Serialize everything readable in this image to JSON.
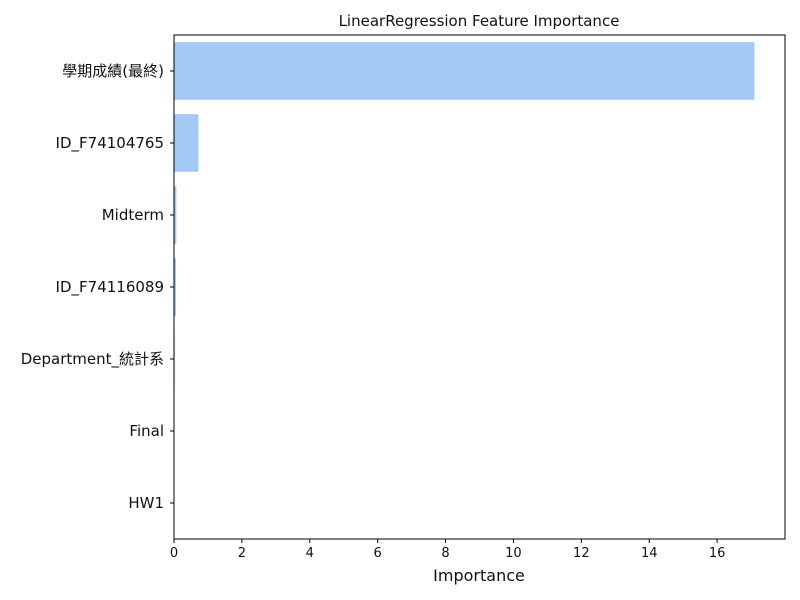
{
  "chart_data": {
    "type": "bar",
    "orientation": "horizontal",
    "title": "LinearRegression Feature Importance",
    "xlabel": "Importance",
    "ylabel": "",
    "categories": [
      "學期成績(最終)",
      "ID_F74104765",
      "Midterm",
      "ID_F74116089",
      "Department_統計系",
      "Final",
      "HW1"
    ],
    "values": [
      17.1,
      0.72,
      0.07,
      0.06,
      0.02,
      0.0,
      0.0
    ],
    "xlim": [
      0,
      18
    ],
    "xticks": [
      0,
      2,
      4,
      6,
      8,
      10,
      12,
      14,
      16
    ],
    "grid": false,
    "bar_color": "#a3c8f4"
  }
}
